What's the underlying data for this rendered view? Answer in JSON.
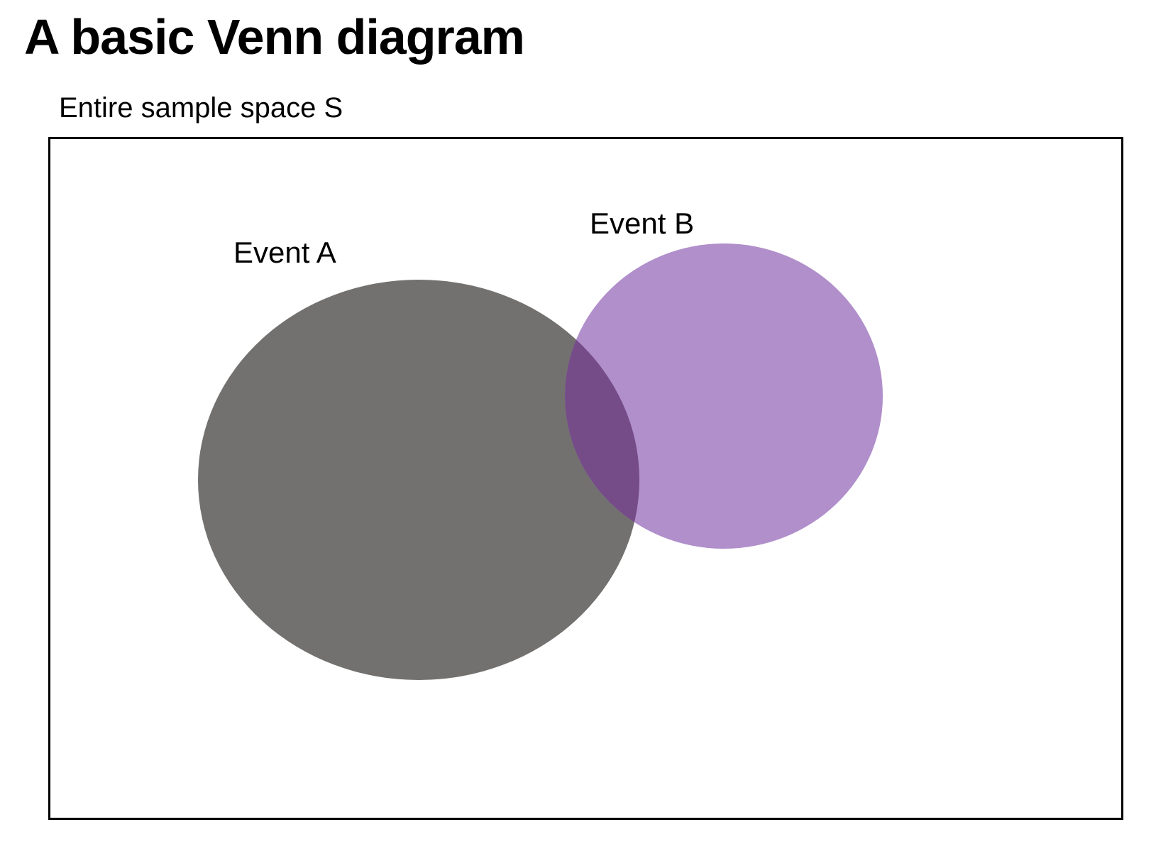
{
  "title": "A basic Venn diagram",
  "sample_space": {
    "label": "Entire sample space S"
  },
  "events": [
    {
      "name": "event-a",
      "label": "Event A",
      "color": "#72716f"
    },
    {
      "name": "event-b",
      "label": "Event B",
      "color": "#b08fcb"
    }
  ],
  "intersection_color": "#754c88"
}
